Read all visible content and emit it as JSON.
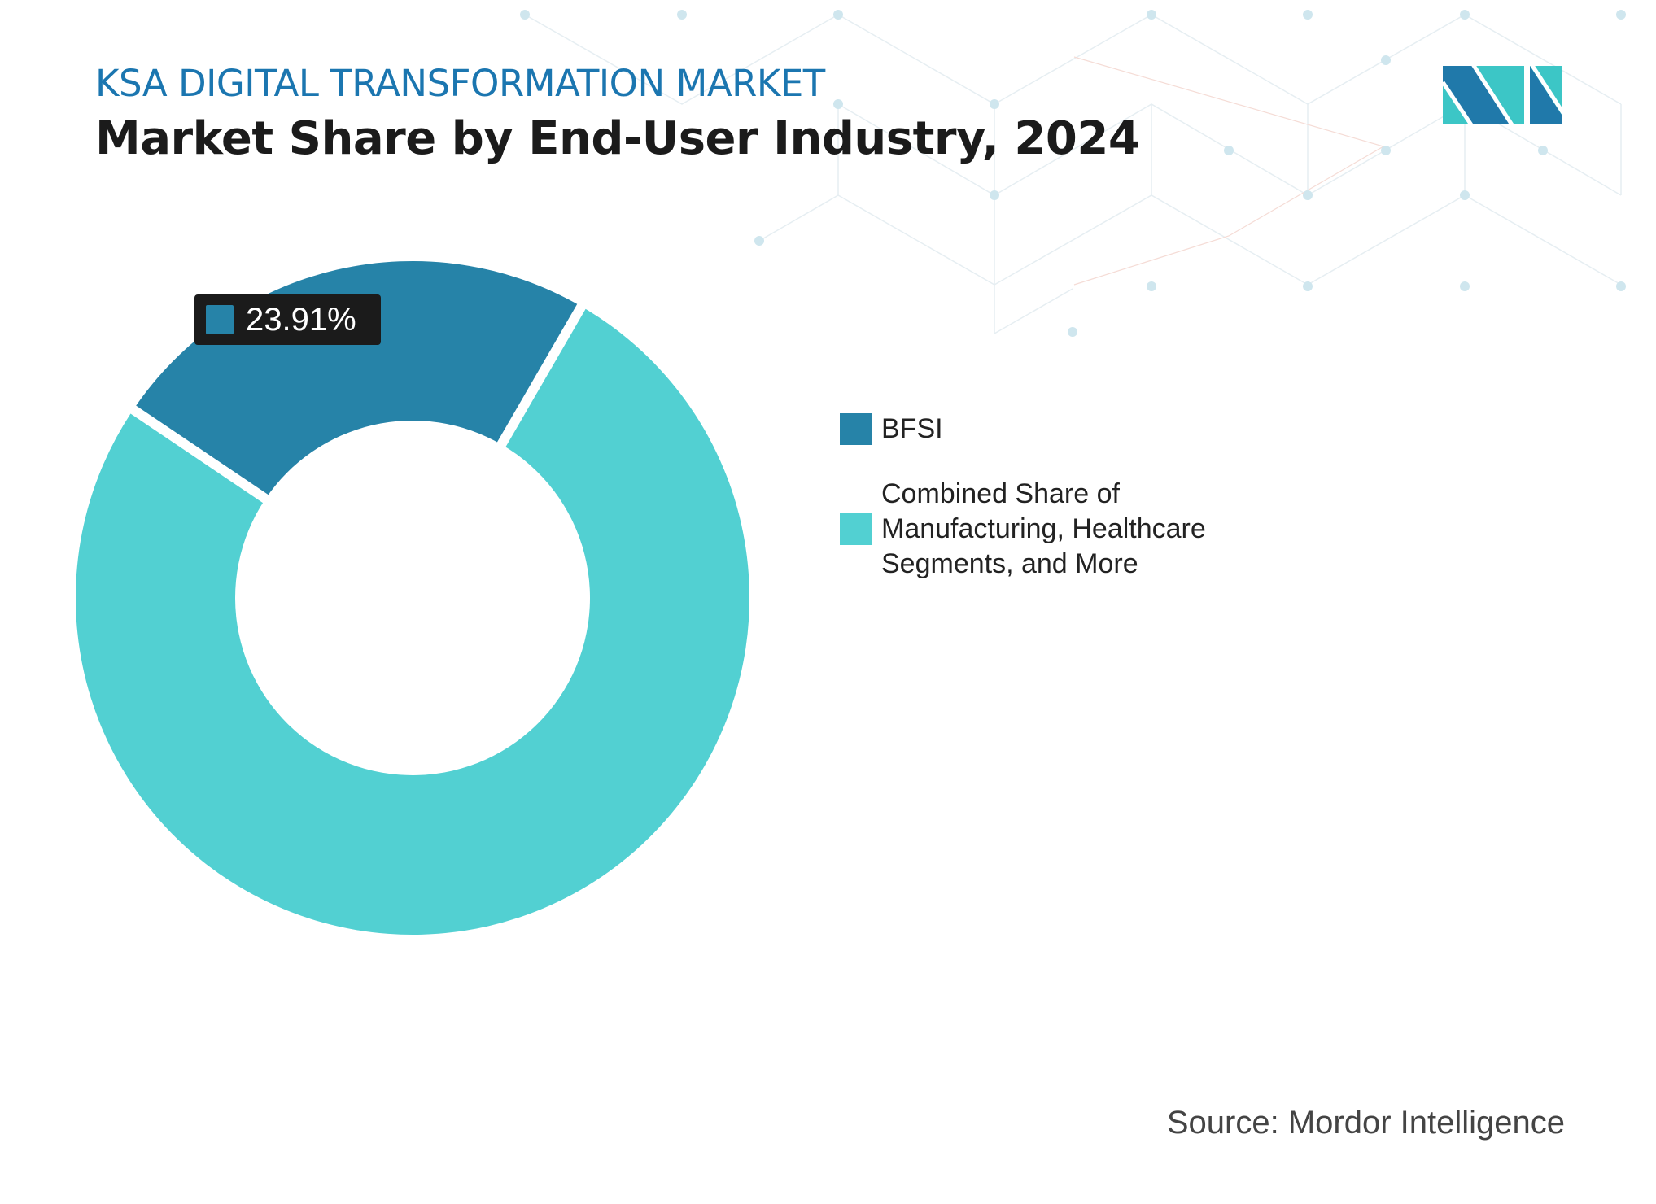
{
  "header": {
    "kicker": "KSA DIGITAL TRANSFORMATION MARKET",
    "title": "Market Share by End-User Industry, 2024"
  },
  "chart_data": {
    "type": "pie",
    "variant": "donut",
    "categories": [
      "BFSI",
      "Combined Share of Manufacturing, Healthcare Segments, and More"
    ],
    "values": [
      23.91,
      76.09
    ],
    "colors": [
      "#2683a8",
      "#52d0d2"
    ],
    "data_labels": [
      {
        "category": "BFSI",
        "text": "23.91%"
      }
    ],
    "legend": {
      "placement": "right",
      "entries": [
        "BFSI",
        "Combined Share of Manufacturing, Healthcare Segments, and More"
      ]
    }
  },
  "footer": {
    "source": "Source: Mordor Intelligence"
  },
  "logo": {
    "name": "mordor-intelligence-logo",
    "colors": [
      "#2079aa",
      "#3cc6c6"
    ]
  }
}
